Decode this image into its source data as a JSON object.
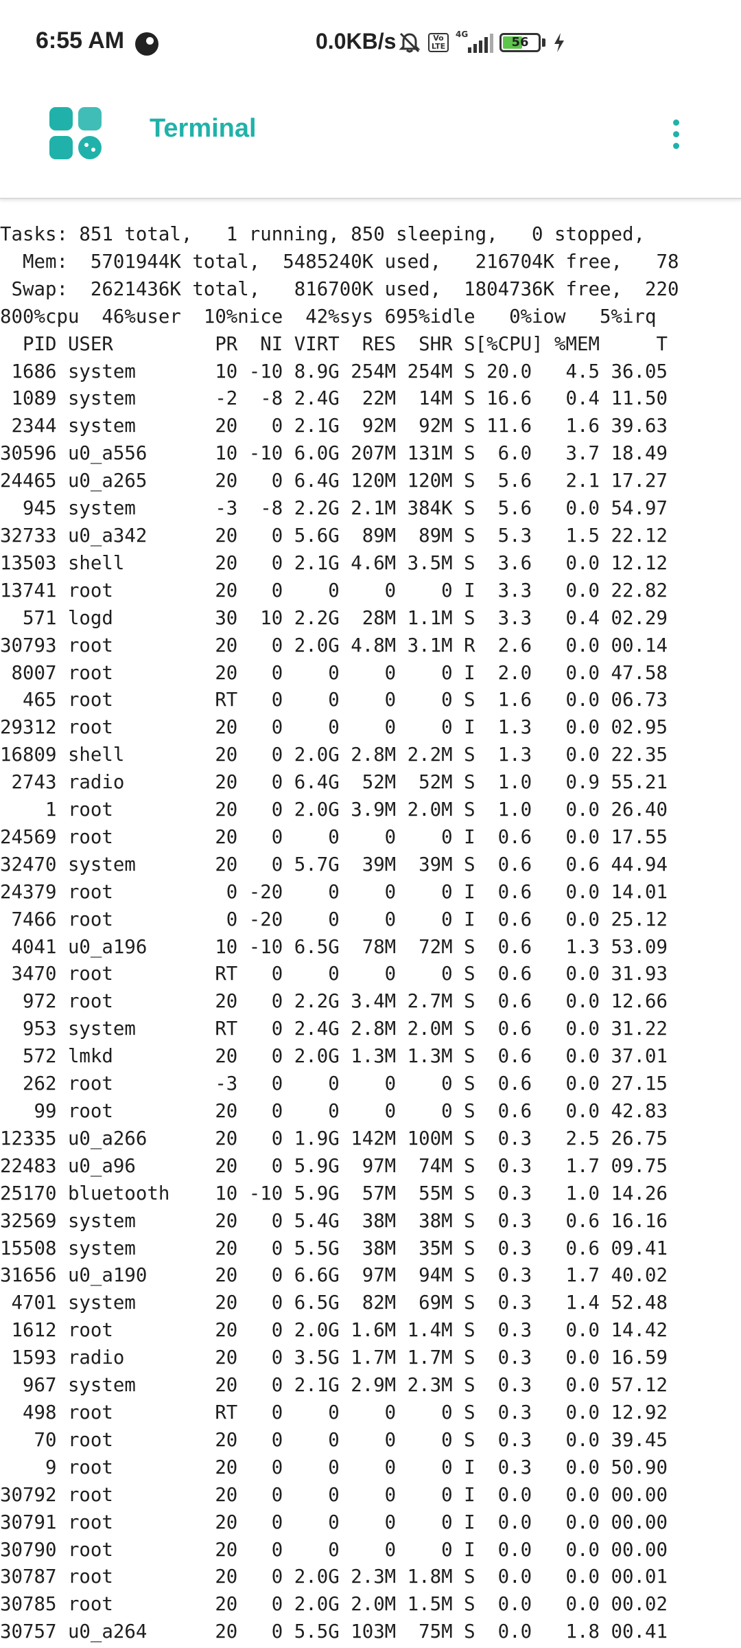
{
  "status_bar": {
    "time": "6:55 AM",
    "net_speed": "0.0KB/s",
    "network_type": "4G",
    "volte_label": "Vo LTE",
    "battery_level": "56",
    "battery_fraction": 0.56,
    "icons": [
      "app-notification-icon",
      "mute-icon",
      "volte-icon",
      "signal-icon",
      "battery-icon",
      "charging-icon"
    ]
  },
  "toolbar": {
    "title": "Terminal",
    "accent_color": "#20b2aa"
  },
  "terminal": {
    "lines": [
      "Tasks: 851 total,   1 running, 850 sleeping,   0 stopped,",
      "  Mem:  5701944K total,  5485240K used,   216704K free,   78",
      " Swap:  2621436K total,   816700K used,  1804736K free,  220",
      "800%cpu  46%user  10%nice  42%sys 695%idle   0%iow   5%irq",
      "  PID USER         PR  NI VIRT  RES  SHR S[%CPU] %MEM     T",
      " 1686 system       10 -10 8.9G 254M 254M S 20.0   4.5 36.05",
      " 1089 system       -2  -8 2.4G  22M  14M S 16.6   0.4 11.50",
      " 2344 system       20   0 2.1G  92M  92M S 11.6   1.6 39.63",
      "30596 u0_a556      10 -10 6.0G 207M 131M S  6.0   3.7 18.49",
      "24465 u0_a265      20   0 6.4G 120M 120M S  5.6   2.1 17.27",
      "  945 system       -3  -8 2.2G 2.1M 384K S  5.6   0.0 54.97",
      "32733 u0_a342      20   0 5.6G  89M  89M S  5.3   1.5 22.12",
      "13503 shell        20   0 2.1G 4.6M 3.5M S  3.6   0.0 12.12",
      "13741 root         20   0    0    0    0 I  3.3   0.0 22.82",
      "  571 logd         30  10 2.2G  28M 1.1M S  3.3   0.4 02.29",
      "30793 root         20   0 2.0G 4.8M 3.1M R  2.6   0.0 00.14",
      " 8007 root         20   0    0    0    0 I  2.0   0.0 47.58",
      "  465 root         RT   0    0    0    0 S  1.6   0.0 06.73",
      "29312 root         20   0    0    0    0 I  1.3   0.0 02.95",
      "16809 shell        20   0 2.0G 2.8M 2.2M S  1.3   0.0 22.35",
      " 2743 radio        20   0 6.4G  52M  52M S  1.0   0.9 55.21",
      "    1 root         20   0 2.0G 3.9M 2.0M S  1.0   0.0 26.40",
      "24569 root         20   0    0    0    0 I  0.6   0.0 17.55",
      "32470 system       20   0 5.7G  39M  39M S  0.6   0.6 44.94",
      "24379 root          0 -20    0    0    0 I  0.6   0.0 14.01",
      " 7466 root          0 -20    0    0    0 I  0.6   0.0 25.12",
      " 4041 u0_a196      10 -10 6.5G  78M  72M S  0.6   1.3 53.09",
      " 3470 root         RT   0    0    0    0 S  0.6   0.0 31.93",
      "  972 root         20   0 2.2G 3.4M 2.7M S  0.6   0.0 12.66",
      "  953 system       RT   0 2.4G 2.8M 2.0M S  0.6   0.0 31.22",
      "  572 lmkd         20   0 2.0G 1.3M 1.3M S  0.6   0.0 37.01",
      "  262 root         -3   0    0    0    0 S  0.6   0.0 27.15",
      "   99 root         20   0    0    0    0 S  0.6   0.0 42.83",
      "12335 u0_a266      20   0 1.9G 142M 100M S  0.3   2.5 26.75",
      "22483 u0_a96       20   0 5.9G  97M  74M S  0.3   1.7 09.75",
      "25170 bluetooth    10 -10 5.9G  57M  55M S  0.3   1.0 14.26",
      "32569 system       20   0 5.4G  38M  38M S  0.3   0.6 16.16",
      "15508 system       20   0 5.5G  38M  35M S  0.3   0.6 09.41",
      "31656 u0_a190      20   0 6.6G  97M  94M S  0.3   1.7 40.02",
      " 4701 system       20   0 6.5G  82M  69M S  0.3   1.4 52.48",
      " 1612 root         20   0 2.0G 1.6M 1.4M S  0.3   0.0 14.42",
      " 1593 radio        20   0 3.5G 1.7M 1.7M S  0.3   0.0 16.59",
      "  967 system       20   0 2.1G 2.9M 2.3M S  0.3   0.0 57.12",
      "  498 root         RT   0    0    0    0 S  0.3   0.0 12.92",
      "   70 root         20   0    0    0    0 S  0.3   0.0 39.45",
      "    9 root         20   0    0    0    0 I  0.3   0.0 50.90",
      "30792 root         20   0    0    0    0 I  0.0   0.0 00.00",
      "30791 root         20   0    0    0    0 I  0.0   0.0 00.00",
      "30790 root         20   0    0    0    0 I  0.0   0.0 00.00",
      "30787 root         20   0 2.0G 2.3M 1.8M S  0.0   0.0 00.01",
      "30785 root         20   0 2.0G 2.0M 1.5M S  0.0   0.0 00.02",
      "30757 u0_a264      20   0 5.5G 103M  75M S  0.0   1.8 00.41"
    ]
  }
}
